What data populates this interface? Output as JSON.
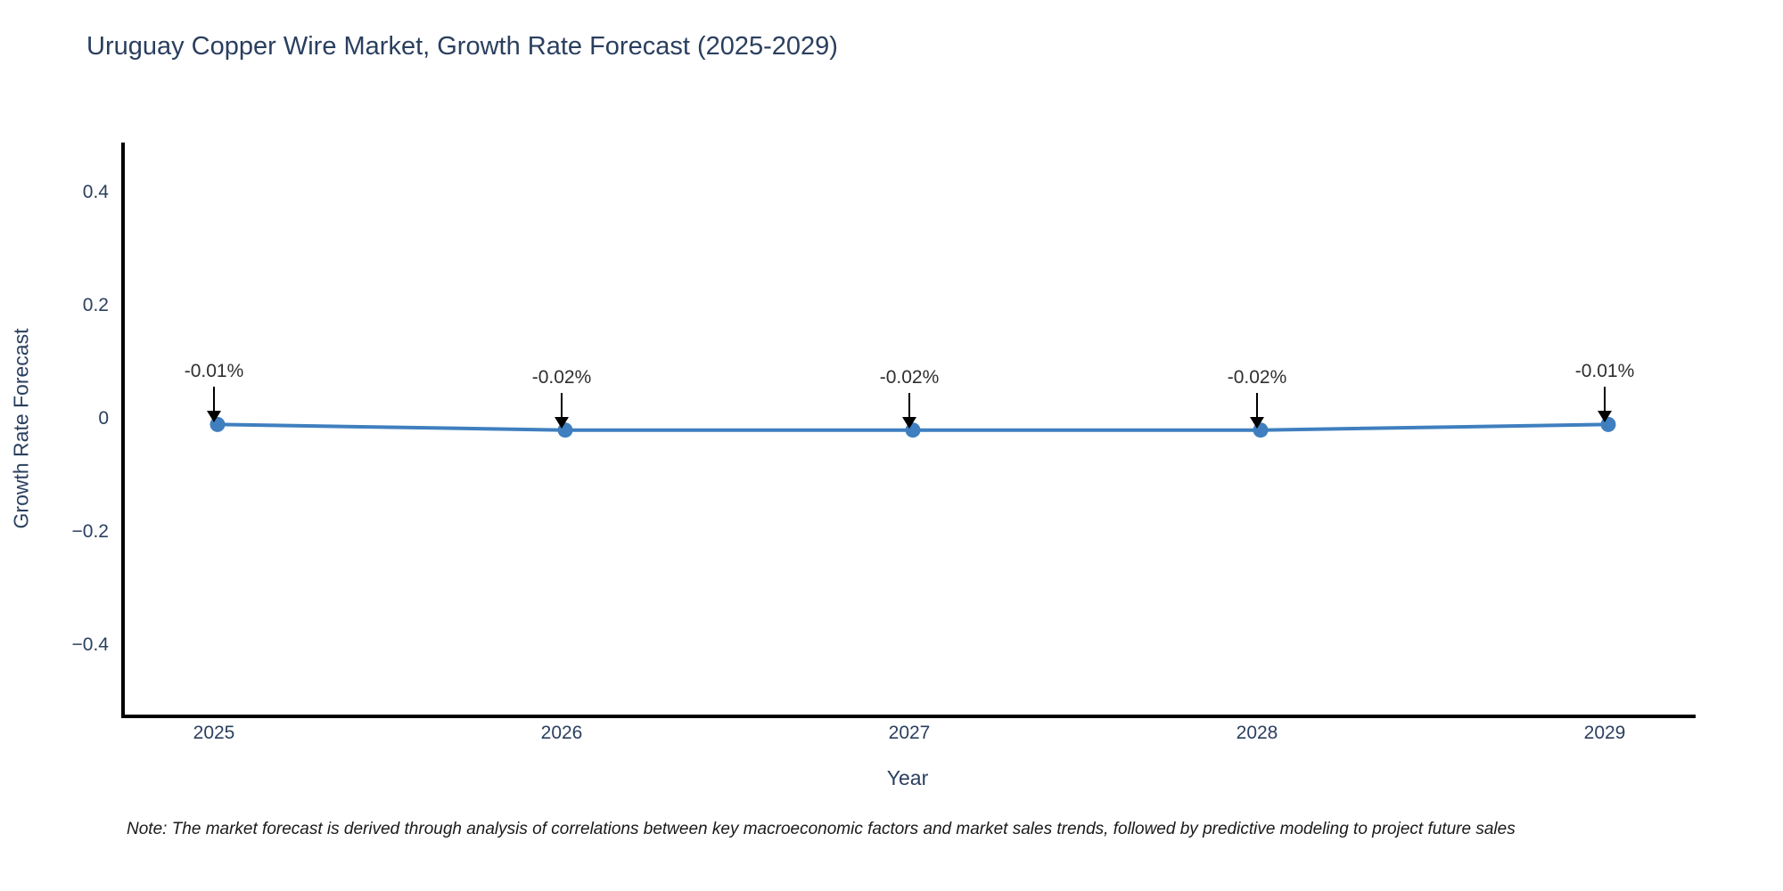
{
  "title": "Uruguay Copper Wire Market, Growth Rate Forecast (2025-2029)",
  "note": "Note: The market forecast is derived through analysis of correlations between key macroeconomic factors and market sales trends, followed by predictive modeling to project future sales",
  "chart_data": {
    "type": "line",
    "title": "Uruguay Copper Wire Market, Growth Rate Forecast (2025-2029)",
    "xlabel": "Year",
    "ylabel": "Growth Rate Forecast",
    "categories": [
      "2025",
      "2026",
      "2027",
      "2028",
      "2029"
    ],
    "series": [
      {
        "name": "Growth Rate Forecast",
        "values": [
          -0.01,
          -0.02,
          -0.02,
          -0.02,
          -0.01
        ],
        "point_labels": [
          "-0.01%",
          "-0.02%",
          "-0.02%",
          "-0.02%",
          "-0.01%"
        ]
      }
    ],
    "yticks": [
      0.4,
      0.2,
      0,
      -0.2,
      -0.4
    ],
    "ytick_labels": [
      "0.4",
      "0.2",
      "0",
      "−0.2",
      "−0.4"
    ],
    "ylim": [
      -0.52,
      0.49
    ],
    "grid": false,
    "legend_position": "none",
    "line_color": "#3f7fbf",
    "marker_color": "#3f7fbf",
    "arrow_color": "#000000",
    "axis_color": "#000000",
    "text_color": "#2a3f5f"
  }
}
